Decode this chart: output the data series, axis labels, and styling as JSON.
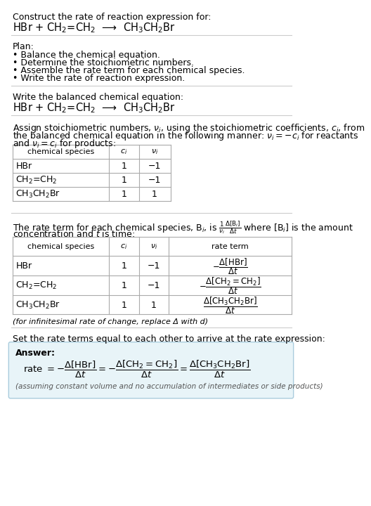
{
  "bg_color": "#ffffff",
  "title_line1": "Construct the rate of reaction expression for:",
  "title_line2": "HBr + CH$_2$=CH$_2$  ⟶  CH$_3$CH$_2$Br",
  "plan_header": "Plan:",
  "plan_items": [
    "• Balance the chemical equation.",
    "• Determine the stoichiometric numbers.",
    "• Assemble the rate term for each chemical species.",
    "• Write the rate of reaction expression."
  ],
  "balanced_header": "Write the balanced chemical equation:",
  "balanced_eq": "HBr + CH$_2$=CH$_2$  ⟶  CH$_3$CH$_2$Br",
  "stoich_intro_line1": "Assign stoichiometric numbers, $\\nu_i$, using the stoichiometric coefficients, $c_i$, from",
  "stoich_intro_line2": "the balanced chemical equation in the following manner: $\\nu_i = -c_i$ for reactants",
  "stoich_intro_line3": "and $\\nu_i = c_i$ for products:",
  "table1_headers": [
    "chemical species",
    "$c_i$",
    "$\\nu_i$"
  ],
  "table1_data": [
    [
      "HBr",
      "1",
      "−1"
    ],
    [
      "CH$_2$=CH$_2$",
      "1",
      "−1"
    ],
    [
      "CH$_3$CH$_2$Br",
      "1",
      "1"
    ]
  ],
  "rate_intro_line1": "The rate term for each chemical species, B$_i$, is $\\frac{1}{\\nu_i}\\frac{\\Delta[\\mathrm{B}_i]}{\\Delta t}$ where [B$_i$] is the amount",
  "rate_intro_line2": "concentration and $t$ is time:",
  "table2_headers": [
    "chemical species",
    "$c_i$",
    "$\\nu_i$",
    "rate term"
  ],
  "table2_species": [
    "HBr",
    "CH$_2$=CH$_2$",
    "CH$_3$CH$_2$Br"
  ],
  "table2_ci": [
    "1",
    "1",
    "1"
  ],
  "table2_ni": [
    "−1",
    "−1",
    "1"
  ],
  "infinitesimal_note": "(for infinitesimal rate of change, replace Δ with d)",
  "set_equal_text": "Set the rate terms equal to each other to arrive at the rate expression:",
  "answer_label": "Answer:",
  "answer_note": "(assuming constant volume and no accumulation of intermediates or side products)",
  "answer_box_color": "#e8f4f8",
  "answer_box_border": "#aaccdd",
  "separator_color": "#cccccc",
  "table_line_color": "#aaaaaa"
}
